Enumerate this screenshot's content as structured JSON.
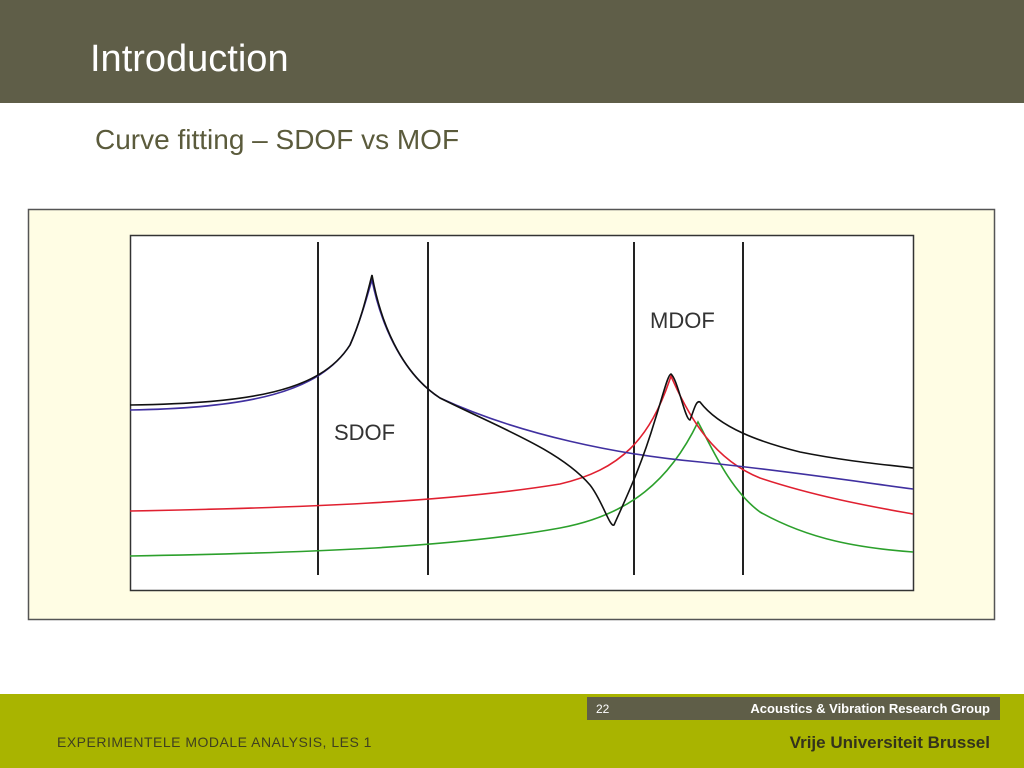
{
  "header": {
    "title": "Introduction"
  },
  "subtitle": "Curve fitting – SDOF vs MOF",
  "figure": {
    "labels": [
      "SDOF",
      "MDOF"
    ]
  },
  "footer": {
    "slide_number": "22",
    "group": "Acoustics & Vibration Research Group",
    "course": "EXPERIMENTELE MODALE ANALYSIS, LES 1",
    "university": "Vrije Universiteit Brussel"
  }
}
